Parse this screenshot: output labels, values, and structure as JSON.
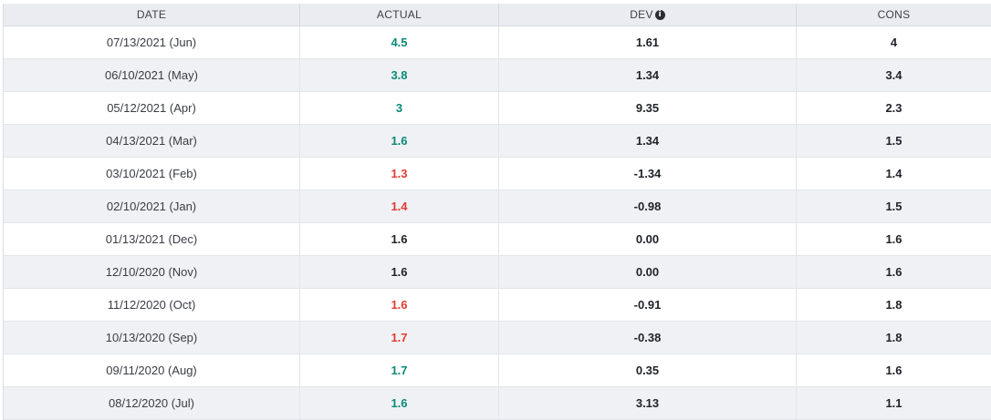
{
  "colors": {
    "positive": "#0a8a78",
    "negative": "#e33b2f",
    "neutral": "#1f2228"
  },
  "table": {
    "headers": {
      "date": "DATE",
      "actual": "ACTUAL",
      "dev": "DEV",
      "cons": "CONS",
      "dev_icon": "info-icon"
    },
    "rows": [
      {
        "date": "07/13/2021 (Jun)",
        "actual": "4.5",
        "actual_status": "positive",
        "dev": "1.61",
        "cons": "4"
      },
      {
        "date": "06/10/2021 (May)",
        "actual": "3.8",
        "actual_status": "positive",
        "dev": "1.34",
        "cons": "3.4"
      },
      {
        "date": "05/12/2021 (Apr)",
        "actual": "3",
        "actual_status": "positive",
        "dev": "9.35",
        "cons": "2.3"
      },
      {
        "date": "04/13/2021 (Mar)",
        "actual": "1.6",
        "actual_status": "positive",
        "dev": "1.34",
        "cons": "1.5"
      },
      {
        "date": "03/10/2021 (Feb)",
        "actual": "1.3",
        "actual_status": "negative",
        "dev": "-1.34",
        "cons": "1.4"
      },
      {
        "date": "02/10/2021 (Jan)",
        "actual": "1.4",
        "actual_status": "negative",
        "dev": "-0.98",
        "cons": "1.5"
      },
      {
        "date": "01/13/2021 (Dec)",
        "actual": "1.6",
        "actual_status": "neutral",
        "dev": "0.00",
        "cons": "1.6"
      },
      {
        "date": "12/10/2020 (Nov)",
        "actual": "1.6",
        "actual_status": "neutral",
        "dev": "0.00",
        "cons": "1.6"
      },
      {
        "date": "11/12/2020 (Oct)",
        "actual": "1.6",
        "actual_status": "negative",
        "dev": "-0.91",
        "cons": "1.8"
      },
      {
        "date": "10/13/2020 (Sep)",
        "actual": "1.7",
        "actual_status": "negative",
        "dev": "-0.38",
        "cons": "1.8"
      },
      {
        "date": "09/11/2020 (Aug)",
        "actual": "1.7",
        "actual_status": "positive",
        "dev": "0.35",
        "cons": "1.6"
      },
      {
        "date": "08/12/2020 (Jul)",
        "actual": "1.6",
        "actual_status": "positive",
        "dev": "3.13",
        "cons": "1.1"
      }
    ]
  }
}
